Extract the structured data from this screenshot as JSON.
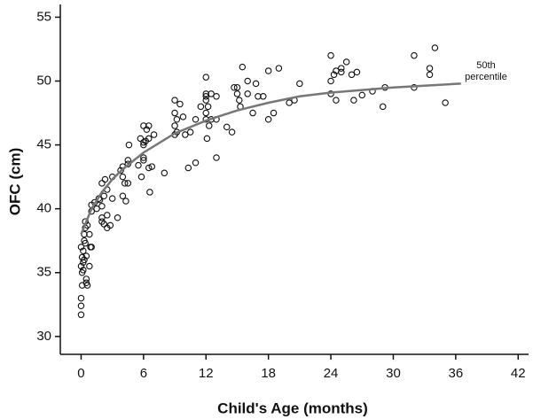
{
  "chart_data": {
    "type": "scatter",
    "x_label": "Child's Age (months)",
    "y_label": "OFC (cm)",
    "annotation": [
      "50th",
      "percentile"
    ],
    "xlim": [
      -2,
      43
    ],
    "ylim": [
      28.6,
      56
    ],
    "xticks": [
      0,
      6,
      12,
      18,
      24,
      30,
      36,
      42
    ],
    "yticks": [
      30,
      35,
      40,
      45,
      50,
      55
    ],
    "series": [
      {
        "type": "scatter",
        "color": "#111111",
        "x": [
          0,
          0,
          0,
          0.1,
          0.1,
          0,
          0.2,
          0.1,
          0.2,
          0,
          0.3,
          0.3,
          0.4,
          0.4,
          0.5,
          0.5,
          0.6,
          0.2,
          0.3,
          0.5,
          0.4,
          0.8,
          0.9,
          0.8,
          1.0,
          0.6,
          1,
          1,
          1.3,
          1.5,
          1.8,
          2,
          2,
          2,
          2.2,
          2.5,
          2.8,
          2.2,
          2.5,
          2,
          2.3,
          1.7,
          2.5,
          3,
          3,
          3.5,
          3.8,
          4,
          4,
          4.2,
          4,
          4.3,
          4.5,
          4.5,
          4.6,
          4.5,
          5.5,
          6,
          5.8,
          6,
          6,
          6.2,
          5.7,
          6,
          6.3,
          6.5,
          6.5,
          6,
          6.5,
          6.8,
          6.6,
          7,
          8,
          9,
          9,
          9.2,
          9.5,
          9,
          9,
          9.2,
          9.8,
          10,
          10.5,
          10.3,
          11,
          11,
          11.5,
          12,
          12,
          12,
          12,
          12.2,
          12,
          12,
          12.3,
          12.1,
          12.5,
          13,
          12.5,
          13,
          13,
          14,
          14.5,
          14.7,
          15,
          15,
          15.2,
          15.3,
          15.5,
          16,
          16,
          16.5,
          16.8,
          17,
          17.5,
          18,
          18,
          18.5,
          19,
          20,
          20.5,
          21,
          24,
          24,
          24,
          24.3,
          24.5,
          24.5,
          25,
          25,
          25.5,
          26,
          26.5,
          26.2,
          27,
          28,
          29,
          29.2,
          32,
          32,
          33.5,
          33.5,
          34,
          35
        ],
        "values": [
          31.7,
          32.4,
          33,
          34,
          35,
          35.5,
          35.8,
          36.2,
          36.7,
          37,
          37.5,
          38,
          38.5,
          39,
          34.2,
          34.5,
          34,
          35.2,
          36,
          36.3,
          37.3,
          35.5,
          37,
          38,
          37,
          38.7,
          39.8,
          40.3,
          40.5,
          40,
          40.7,
          40.2,
          39.3,
          39,
          38.8,
          38.5,
          38.7,
          41,
          41.5,
          42,
          42.3,
          40.8,
          39.5,
          40.8,
          42.5,
          39.3,
          43,
          43.3,
          42.5,
          42,
          41,
          40.6,
          43.5,
          43.8,
          45,
          42,
          43.4,
          43.8,
          42.5,
          44,
          45,
          45.3,
          45.5,
          46.5,
          46.2,
          46.5,
          45.5,
          45.2,
          43.2,
          43.3,
          41.3,
          45.8,
          42.8,
          48.5,
          47.5,
          47,
          48.2,
          46.5,
          45.8,
          46,
          47.2,
          45.8,
          46,
          43.2,
          43.6,
          47,
          48,
          50.3,
          49,
          48.8,
          48.5,
          48,
          47.5,
          47,
          46.5,
          45.5,
          49,
          48.8,
          47,
          47,
          44,
          46.4,
          46,
          49.5,
          49,
          49.5,
          48.5,
          48,
          51.1,
          49,
          50,
          47.5,
          49.8,
          48.8,
          48.8,
          50.8,
          47,
          47.5,
          51,
          48.3,
          48.5,
          49.8,
          52,
          50,
          49,
          50.5,
          50.8,
          48.5,
          51,
          50.7,
          51.5,
          50.5,
          50.7,
          48.5,
          48.9,
          49.2,
          48,
          49.5,
          52,
          49.5,
          51,
          50.5,
          52.6,
          48.3
        ]
      },
      {
        "type": "line",
        "color": "#777777",
        "x": [
          0,
          1,
          2,
          3,
          4,
          6,
          9,
          12,
          15,
          18,
          21,
          24,
          30,
          36.5
        ],
        "values": [
          38.0,
          40.0,
          41.3,
          42.3,
          43.1,
          44.4,
          45.9,
          46.9,
          47.7,
          48.3,
          48.8,
          49.1,
          49.5,
          49.8
        ]
      }
    ]
  }
}
